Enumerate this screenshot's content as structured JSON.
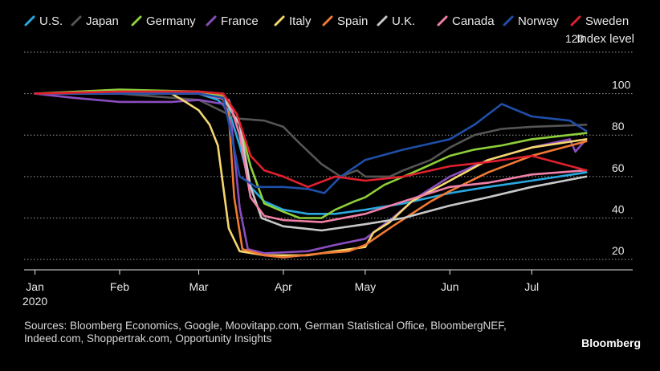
{
  "chart_data": {
    "type": "line",
    "ylabel": "Index level",
    "ylim": [
      15,
      120
    ],
    "y_ticks": [
      120,
      100,
      80,
      60,
      40,
      20
    ],
    "y_axis_side": "right",
    "grid": "horizontal dotted",
    "legend_position": "top",
    "x_ticks": [
      {
        "x": "2020-01-01",
        "label": "Jan"
      },
      {
        "x": "2020-02-01",
        "label": "Feb"
      },
      {
        "x": "2020-03-01",
        "label": "Mar"
      },
      {
        "x": "2020-04-01",
        "label": "Apr"
      },
      {
        "x": "2020-05-01",
        "label": "May"
      },
      {
        "x": "2020-06-01",
        "label": "Jun"
      },
      {
        "x": "2020-07-01",
        "label": "Jul"
      }
    ],
    "year_label": "2020",
    "x_range": [
      "2019-12-28",
      "2020-08-07"
    ],
    "series": [
      {
        "name": "U.S.",
        "color": "#29a8e0",
        "points": [
          [
            "2020-01-01",
            100
          ],
          [
            "2020-02-01",
            100
          ],
          [
            "2020-03-01",
            100
          ],
          [
            "2020-03-08",
            97
          ],
          [
            "2020-03-12",
            92
          ],
          [
            "2020-03-16",
            75
          ],
          [
            "2020-03-20",
            55
          ],
          [
            "2020-03-25",
            48
          ],
          [
            "2020-04-01",
            44
          ],
          [
            "2020-04-10",
            42
          ],
          [
            "2020-04-20",
            42
          ],
          [
            "2020-05-01",
            44
          ],
          [
            "2020-05-15",
            47
          ],
          [
            "2020-06-01",
            52
          ],
          [
            "2020-06-15",
            55
          ],
          [
            "2020-07-01",
            58
          ],
          [
            "2020-07-21",
            62
          ]
        ]
      },
      {
        "name": "Japan",
        "color": "#555555",
        "points": [
          [
            "2020-01-01",
            100
          ],
          [
            "2020-02-01",
            100
          ],
          [
            "2020-03-01",
            97
          ],
          [
            "2020-03-15",
            88
          ],
          [
            "2020-03-25",
            87
          ],
          [
            "2020-04-01",
            84
          ],
          [
            "2020-04-07",
            76
          ],
          [
            "2020-04-15",
            66
          ],
          [
            "2020-04-22",
            60
          ],
          [
            "2020-04-28",
            63
          ],
          [
            "2020-05-01",
            60
          ],
          [
            "2020-05-10",
            60
          ],
          [
            "2020-05-15",
            63
          ],
          [
            "2020-05-25",
            68
          ],
          [
            "2020-06-01",
            74
          ],
          [
            "2020-06-10",
            80
          ],
          [
            "2020-06-20",
            83
          ],
          [
            "2020-07-01",
            84
          ],
          [
            "2020-07-21",
            85
          ]
        ]
      },
      {
        "name": "Germany",
        "color": "#8ecf3a",
        "points": [
          [
            "2020-01-01",
            100
          ],
          [
            "2020-02-01",
            102
          ],
          [
            "2020-03-01",
            101
          ],
          [
            "2020-03-10",
            99
          ],
          [
            "2020-03-15",
            90
          ],
          [
            "2020-03-20",
            65
          ],
          [
            "2020-03-25",
            47
          ],
          [
            "2020-04-01",
            43
          ],
          [
            "2020-04-07",
            40
          ],
          [
            "2020-04-15",
            40
          ],
          [
            "2020-04-20",
            44
          ],
          [
            "2020-04-27",
            48
          ],
          [
            "2020-05-01",
            50
          ],
          [
            "2020-05-08",
            56
          ],
          [
            "2020-05-15",
            60
          ],
          [
            "2020-05-22",
            64
          ],
          [
            "2020-06-01",
            70
          ],
          [
            "2020-06-10",
            73
          ],
          [
            "2020-06-20",
            75
          ],
          [
            "2020-07-01",
            78
          ],
          [
            "2020-07-21",
            81
          ]
        ]
      },
      {
        "name": "France",
        "color": "#8a4dbf",
        "points": [
          [
            "2020-01-01",
            100
          ],
          [
            "2020-01-15",
            98
          ],
          [
            "2020-02-01",
            96
          ],
          [
            "2020-02-20",
            96
          ],
          [
            "2020-03-01",
            97
          ],
          [
            "2020-03-10",
            95
          ],
          [
            "2020-03-13",
            85
          ],
          [
            "2020-03-16",
            45
          ],
          [
            "2020-03-19",
            25
          ],
          [
            "2020-03-25",
            23
          ],
          [
            "2020-04-10",
            24
          ],
          [
            "2020-04-20",
            27
          ],
          [
            "2020-05-01",
            30
          ],
          [
            "2020-05-11",
            40
          ],
          [
            "2020-05-20",
            50
          ],
          [
            "2020-06-01",
            60
          ],
          [
            "2020-06-15",
            68
          ],
          [
            "2020-07-01",
            74
          ],
          [
            "2020-07-15",
            78
          ],
          [
            "2020-07-17",
            72
          ],
          [
            "2020-07-21",
            78
          ]
        ]
      },
      {
        "name": "Italy",
        "color": "#f5d76e",
        "points": [
          [
            "2020-01-01",
            100
          ],
          [
            "2020-02-01",
            100
          ],
          [
            "2020-02-20",
            100
          ],
          [
            "2020-02-24",
            97
          ],
          [
            "2020-03-01",
            92
          ],
          [
            "2020-03-05",
            85
          ],
          [
            "2020-03-08",
            75
          ],
          [
            "2020-03-10",
            55
          ],
          [
            "2020-03-12",
            35
          ],
          [
            "2020-03-16",
            24
          ],
          [
            "2020-03-25",
            22
          ],
          [
            "2020-04-10",
            22
          ],
          [
            "2020-04-20",
            24
          ],
          [
            "2020-05-01",
            26
          ],
          [
            "2020-05-04",
            33
          ],
          [
            "2020-05-10",
            38
          ],
          [
            "2020-05-18",
            48
          ],
          [
            "2020-06-01",
            58
          ],
          [
            "2020-06-15",
            68
          ],
          [
            "2020-07-01",
            74
          ],
          [
            "2020-07-21",
            78
          ]
        ]
      },
      {
        "name": "Spain",
        "color": "#f07a33",
        "points": [
          [
            "2020-01-01",
            100
          ],
          [
            "2020-02-01",
            101
          ],
          [
            "2020-03-01",
            101
          ],
          [
            "2020-03-09",
            100
          ],
          [
            "2020-03-12",
            90
          ],
          [
            "2020-03-14",
            50
          ],
          [
            "2020-03-17",
            25
          ],
          [
            "2020-03-25",
            22
          ],
          [
            "2020-04-01",
            21
          ],
          [
            "2020-04-15",
            23
          ],
          [
            "2020-04-25",
            24
          ],
          [
            "2020-05-01",
            27
          ],
          [
            "2020-05-11",
            36
          ],
          [
            "2020-05-25",
            48
          ],
          [
            "2020-06-01",
            53
          ],
          [
            "2020-06-15",
            62
          ],
          [
            "2020-07-01",
            70
          ],
          [
            "2020-07-21",
            77
          ]
        ]
      },
      {
        "name": "U.K.",
        "color": "#c8c8c8",
        "points": [
          [
            "2020-01-01",
            100
          ],
          [
            "2020-02-01",
            100
          ],
          [
            "2020-03-01",
            100
          ],
          [
            "2020-03-10",
            98
          ],
          [
            "2020-03-16",
            85
          ],
          [
            "2020-03-20",
            55
          ],
          [
            "2020-03-24",
            40
          ],
          [
            "2020-04-01",
            36
          ],
          [
            "2020-04-15",
            34
          ],
          [
            "2020-05-01",
            37
          ],
          [
            "2020-05-15",
            40
          ],
          [
            "2020-06-01",
            46
          ],
          [
            "2020-06-15",
            50
          ],
          [
            "2020-07-01",
            55
          ],
          [
            "2020-07-21",
            60
          ]
        ]
      },
      {
        "name": "Canada",
        "color": "#f080a8",
        "points": [
          [
            "2020-01-01",
            100
          ],
          [
            "2020-02-01",
            100
          ],
          [
            "2020-03-01",
            100
          ],
          [
            "2020-03-12",
            97
          ],
          [
            "2020-03-16",
            80
          ],
          [
            "2020-03-20",
            50
          ],
          [
            "2020-03-25",
            41
          ],
          [
            "2020-04-01",
            39
          ],
          [
            "2020-04-15",
            38
          ],
          [
            "2020-05-01",
            42
          ],
          [
            "2020-05-15",
            48
          ],
          [
            "2020-06-01",
            55
          ],
          [
            "2020-06-15",
            57
          ],
          [
            "2020-07-01",
            61
          ],
          [
            "2020-07-21",
            63
          ]
        ]
      },
      {
        "name": "Norway",
        "color": "#1f4fa8",
        "points": [
          [
            "2020-01-01",
            100
          ],
          [
            "2020-02-01",
            100
          ],
          [
            "2020-03-01",
            100
          ],
          [
            "2020-03-10",
            98
          ],
          [
            "2020-03-13",
            80
          ],
          [
            "2020-03-16",
            60
          ],
          [
            "2020-03-22",
            55
          ],
          [
            "2020-04-01",
            55
          ],
          [
            "2020-04-10",
            54
          ],
          [
            "2020-04-16",
            52
          ],
          [
            "2020-04-22",
            60
          ],
          [
            "2020-05-01",
            68
          ],
          [
            "2020-05-15",
            73
          ],
          [
            "2020-06-01",
            78
          ],
          [
            "2020-06-10",
            85
          ],
          [
            "2020-06-20",
            95
          ],
          [
            "2020-07-01",
            89
          ],
          [
            "2020-07-15",
            87
          ],
          [
            "2020-07-21",
            82
          ]
        ]
      },
      {
        "name": "Sweden",
        "color": "#e0202e",
        "points": [
          [
            "2020-01-01",
            100
          ],
          [
            "2020-02-01",
            101
          ],
          [
            "2020-03-01",
            101
          ],
          [
            "2020-03-10",
            100
          ],
          [
            "2020-03-15",
            90
          ],
          [
            "2020-03-20",
            70
          ],
          [
            "2020-03-25",
            63
          ],
          [
            "2020-04-01",
            60
          ],
          [
            "2020-04-10",
            55
          ],
          [
            "2020-04-20",
            60
          ],
          [
            "2020-05-01",
            58
          ],
          [
            "2020-05-15",
            60
          ],
          [
            "2020-06-01",
            65
          ],
          [
            "2020-06-15",
            67
          ],
          [
            "2020-07-01",
            70
          ],
          [
            "2020-07-21",
            63
          ]
        ]
      }
    ]
  },
  "source_text_line1": "Sources: Bloomberg Economics, Google, Moovitapp.com, German Statistical Office, BloombergNEF,",
  "source_text_line2": "Indeed.com, Shoppertrak.com, Opportunity Insights",
  "brand": "Bloomberg"
}
